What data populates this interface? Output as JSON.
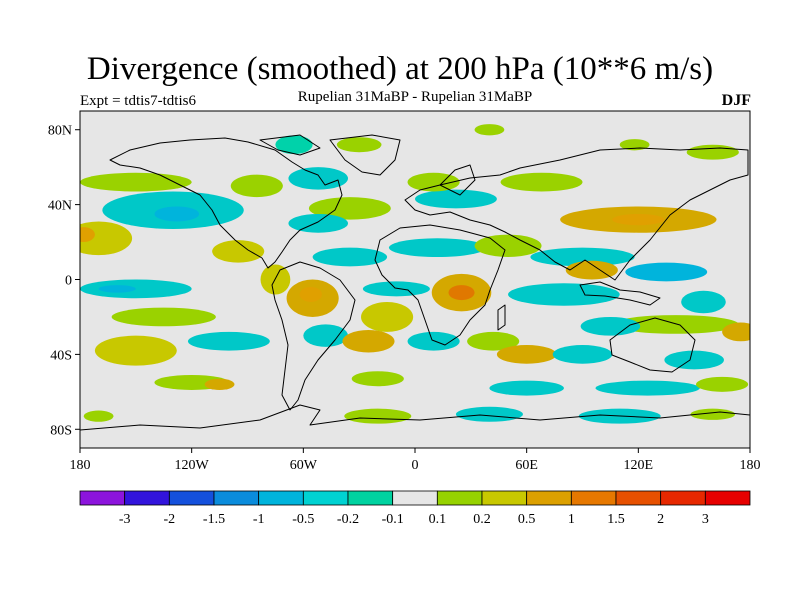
{
  "title": "Divergence (smoothed) at 200 hPa (10**6 m/s)",
  "subtitle": "Rupelian  31MaBP - Rupelian  31MaBP",
  "experiment": "Expt = tdtis7-tdtis6",
  "season": "DJF",
  "map": {
    "projection": "cylindrical-equidistant",
    "lon_range": [
      -180,
      180
    ],
    "lat_range": [
      -90,
      90
    ],
    "lon_ticks": [
      {
        "value": -180,
        "label": "180"
      },
      {
        "value": -120,
        "label": "120W"
      },
      {
        "value": -60,
        "label": "60W"
      },
      {
        "value": 0,
        "label": "0"
      },
      {
        "value": 60,
        "label": "60E"
      },
      {
        "value": 120,
        "label": "120E"
      },
      {
        "value": 180,
        "label": "180"
      }
    ],
    "lat_ticks": [
      {
        "value": 80,
        "label": "80N"
      },
      {
        "value": 40,
        "label": "40N"
      },
      {
        "value": 0,
        "label": "0"
      },
      {
        "value": -40,
        "label": "40S"
      },
      {
        "value": -80,
        "label": "80S"
      }
    ],
    "background_color": "#e6e6e6",
    "regions": [
      {
        "name": "nw-atlantic-cyan",
        "lon": -52,
        "lat": 54,
        "rlon": 16,
        "rlat": 6,
        "color": "#00c8c8"
      },
      {
        "name": "n-pacific-cyan",
        "lon": -130,
        "lat": 37,
        "rlon": 38,
        "rlat": 10,
        "color": "#00c8c8"
      },
      {
        "name": "n-pacific-cyan-core",
        "lon": -128,
        "lat": 35,
        "rlon": 12,
        "rlat": 4,
        "color": "#00b4dc"
      },
      {
        "name": "n-pacific-green",
        "lon": -150,
        "lat": 52,
        "rlon": 30,
        "rlat": 5,
        "color": "#9ad200"
      },
      {
        "name": "ne-pacific-green",
        "lon": -85,
        "lat": 50,
        "rlon": 14,
        "rlat": 6,
        "color": "#9ad200"
      },
      {
        "name": "arctic-green-a",
        "lon": -30,
        "lat": 72,
        "rlon": 12,
        "rlat": 4,
        "color": "#9ad200"
      },
      {
        "name": "arctic-green-b",
        "lon": 40,
        "lat": 80,
        "rlon": 8,
        "rlat": 3,
        "color": "#9ad200"
      },
      {
        "name": "arctic-green-c",
        "lon": 118,
        "lat": 72,
        "rlon": 8,
        "rlat": 3,
        "color": "#9ad200"
      },
      {
        "name": "arctic-green-d",
        "lon": 160,
        "lat": 68,
        "rlon": 14,
        "rlat": 4,
        "color": "#9ad200"
      },
      {
        "name": "arctic-cyan",
        "lon": -65,
        "lat": 72,
        "rlon": 10,
        "rlat": 5,
        "color": "#00d2aa"
      },
      {
        "name": "mid-atlantic-green",
        "lon": -35,
        "lat": 38,
        "rlon": 22,
        "rlat": 6,
        "color": "#9ad200"
      },
      {
        "name": "europe-cyan",
        "lon": 22,
        "lat": 43,
        "rlon": 22,
        "rlat": 5,
        "color": "#00c8c8"
      },
      {
        "name": "europe-green",
        "lon": 10,
        "lat": 52,
        "rlon": 14,
        "rlat": 5,
        "color": "#9ad200"
      },
      {
        "name": "central-asia-green",
        "lon": 68,
        "lat": 52,
        "rlon": 22,
        "rlat": 5,
        "color": "#9ad200"
      },
      {
        "name": "w-pacific-orange",
        "lon": 120,
        "lat": 32,
        "rlon": 42,
        "rlat": 7,
        "color": "#d4a800"
      },
      {
        "name": "w-pacific-orange-core",
        "lon": 120,
        "lat": 32,
        "rlon": 14,
        "rlat": 3,
        "color": "#e0a000"
      },
      {
        "name": "c-pacific-green",
        "lon": -170,
        "lat": 22,
        "rlon": 18,
        "rlat": 9,
        "color": "#c8c800"
      },
      {
        "name": "e-pacific-orange",
        "lon": -178,
        "lat": 24,
        "rlon": 6,
        "rlat": 4,
        "color": "#e0a000"
      },
      {
        "name": "n-atlantic-cyan",
        "lon": -52,
        "lat": 30,
        "rlon": 16,
        "rlat": 5,
        "color": "#00c8c8"
      },
      {
        "name": "tropical-n-atlantic-cyan",
        "lon": -35,
        "lat": 12,
        "rlon": 20,
        "rlat": 5,
        "color": "#00c8c8"
      },
      {
        "name": "central-america-green",
        "lon": -95,
        "lat": 15,
        "rlon": 14,
        "rlat": 6,
        "color": "#c8c800"
      },
      {
        "name": "sahara-cyan",
        "lon": 12,
        "lat": 17,
        "rlon": 26,
        "rlat": 5,
        "color": "#00c8c8"
      },
      {
        "name": "arabia-green",
        "lon": 50,
        "lat": 18,
        "rlon": 18,
        "rlat": 6,
        "color": "#9ad200"
      },
      {
        "name": "india-cyan",
        "lon": 90,
        "lat": 12,
        "rlon": 28,
        "rlat": 5,
        "color": "#00c8c8"
      },
      {
        "name": "indonesia-cyan",
        "lon": 135,
        "lat": 4,
        "rlon": 22,
        "rlat": 5,
        "color": "#00b4dc"
      },
      {
        "name": "equatorial-pacific-cyan",
        "lon": -150,
        "lat": -5,
        "rlon": 30,
        "rlat": 5,
        "color": "#00c8c8"
      },
      {
        "name": "equatorial-pacific-cyan-core",
        "lon": -160,
        "lat": -5,
        "rlon": 10,
        "rlat": 2,
        "color": "#00b4dc"
      },
      {
        "name": "tropical-pacific-green",
        "lon": -135,
        "lat": -20,
        "rlon": 28,
        "rlat": 5,
        "color": "#9ad200"
      },
      {
        "name": "amazon-orange",
        "lon": -55,
        "lat": -10,
        "rlon": 14,
        "rlat": 10,
        "color": "#d4a800"
      },
      {
        "name": "amazon-orange-core",
        "lon": -56,
        "lat": -8,
        "rlon": 6,
        "rlat": 4,
        "color": "#e0a000"
      },
      {
        "name": "amazon-green",
        "lon": -75,
        "lat": 0,
        "rlon": 8,
        "rlat": 8,
        "color": "#c8c800"
      },
      {
        "name": "africa-orange",
        "lon": 25,
        "lat": -7,
        "rlon": 16,
        "rlat": 10,
        "color": "#d4a800"
      },
      {
        "name": "africa-orange-core",
        "lon": 25,
        "lat": -7,
        "rlon": 7,
        "rlat": 4,
        "color": "#e07800"
      },
      {
        "name": "s-atlantic-green",
        "lon": -15,
        "lat": -20,
        "rlon": 14,
        "rlat": 8,
        "color": "#c8c800"
      },
      {
        "name": "s-atlantic-cyan",
        "lon": -10,
        "lat": -5,
        "rlon": 18,
        "rlat": 4,
        "color": "#00c8c8"
      },
      {
        "name": "indian-ocean-cyan",
        "lon": 80,
        "lat": -8,
        "rlon": 30,
        "rlat": 6,
        "color": "#00c8c8"
      },
      {
        "name": "indian-ocean-orange",
        "lon": 95,
        "lat": 5,
        "rlon": 14,
        "rlat": 5,
        "color": "#d4a800"
      },
      {
        "name": "sw-pacific-cyan",
        "lon": 155,
        "lat": -12,
        "rlon": 12,
        "rlat": 6,
        "color": "#00c8c8"
      },
      {
        "name": "sw-pacific-green",
        "lon": 140,
        "lat": -24,
        "rlon": 34,
        "rlat": 5,
        "color": "#9ad200"
      },
      {
        "name": "australia-cyan",
        "lon": 105,
        "lat": -25,
        "rlon": 16,
        "rlat": 5,
        "color": "#00c8c8"
      },
      {
        "name": "s-pacific-orange",
        "lon": 175,
        "lat": -28,
        "rlon": 10,
        "rlat": 5,
        "color": "#d4a800"
      },
      {
        "name": "s-pacific-green",
        "lon": -150,
        "lat": -38,
        "rlon": 22,
        "rlat": 8,
        "color": "#c8c800"
      },
      {
        "name": "s-pacific-cyan",
        "lon": -100,
        "lat": -33,
        "rlon": 22,
        "rlat": 5,
        "color": "#00c8c8"
      },
      {
        "name": "s-america-cyan",
        "lon": -48,
        "lat": -30,
        "rlon": 12,
        "rlat": 6,
        "color": "#00c8c8"
      },
      {
        "name": "s-atlantic-orange",
        "lon": -25,
        "lat": -33,
        "rlon": 14,
        "rlat": 6,
        "color": "#d4a800"
      },
      {
        "name": "s-africa-cyan",
        "lon": 10,
        "lat": -33,
        "rlon": 14,
        "rlat": 5,
        "color": "#00c8c8"
      },
      {
        "name": "s-africa-green",
        "lon": 42,
        "lat": -33,
        "rlon": 14,
        "rlat": 5,
        "color": "#9ad200"
      },
      {
        "name": "s-indian-orange",
        "lon": 60,
        "lat": -40,
        "rlon": 16,
        "rlat": 5,
        "color": "#d4a800"
      },
      {
        "name": "s-indian-cyan",
        "lon": 90,
        "lat": -40,
        "rlon": 16,
        "rlat": 5,
        "color": "#00c8c8"
      },
      {
        "name": "sw-pacific-cyan-b",
        "lon": 150,
        "lat": -43,
        "rlon": 16,
        "rlat": 5,
        "color": "#00c8c8"
      },
      {
        "name": "s-ocean-green-a",
        "lon": -120,
        "lat": -55,
        "rlon": 20,
        "rlat": 4,
        "color": "#9ad200"
      },
      {
        "name": "s-ocean-orange",
        "lon": -105,
        "lat": -56,
        "rlon": 8,
        "rlat": 3,
        "color": "#d4a800"
      },
      {
        "name": "s-ocean-green-b",
        "lon": -20,
        "lat": -53,
        "rlon": 14,
        "rlat": 4,
        "color": "#9ad200"
      },
      {
        "name": "s-ocean-cyan-a",
        "lon": 60,
        "lat": -58,
        "rlon": 20,
        "rlat": 4,
        "color": "#00c8c8"
      },
      {
        "name": "s-ocean-cyan-b",
        "lon": 125,
        "lat": -58,
        "rlon": 28,
        "rlat": 4,
        "color": "#00c8c8"
      },
      {
        "name": "s-ocean-green-c",
        "lon": 165,
        "lat": -56,
        "rlon": 14,
        "rlat": 4,
        "color": "#9ad200"
      },
      {
        "name": "antarctic-green-a",
        "lon": -20,
        "lat": -73,
        "rlon": 18,
        "rlat": 4,
        "color": "#9ad200"
      },
      {
        "name": "antarctic-cyan-a",
        "lon": 40,
        "lat": -72,
        "rlon": 18,
        "rlat": 4,
        "color": "#00c8c8"
      },
      {
        "name": "antarctic-cyan-b",
        "lon": 110,
        "lat": -73,
        "rlon": 22,
        "rlat": 4,
        "color": "#00c8c8"
      },
      {
        "name": "antarctic-green-b",
        "lon": 160,
        "lat": -72,
        "rlon": 12,
        "rlat": 3,
        "color": "#9ad200"
      },
      {
        "name": "antarctic-green-c",
        "lon": -170,
        "lat": -73,
        "rlon": 8,
        "rlat": 3,
        "color": "#9ad200"
      }
    ]
  },
  "colorbar": {
    "colors": [
      "#8c14dc",
      "#3214dc",
      "#1450dc",
      "#0a8cdc",
      "#00b4dc",
      "#00d2d2",
      "#00d2a0",
      "#e6e6e6",
      "#96d200",
      "#c8c800",
      "#dca000",
      "#e67800",
      "#e65000",
      "#e62800",
      "#e60000"
    ],
    "labels": [
      "-3",
      "-2",
      "-1.5",
      "-1",
      "-0.5",
      "-0.2",
      "-0.1",
      "0.1",
      "0.2",
      "0.5",
      "1",
      "1.5",
      "2",
      "3"
    ]
  }
}
